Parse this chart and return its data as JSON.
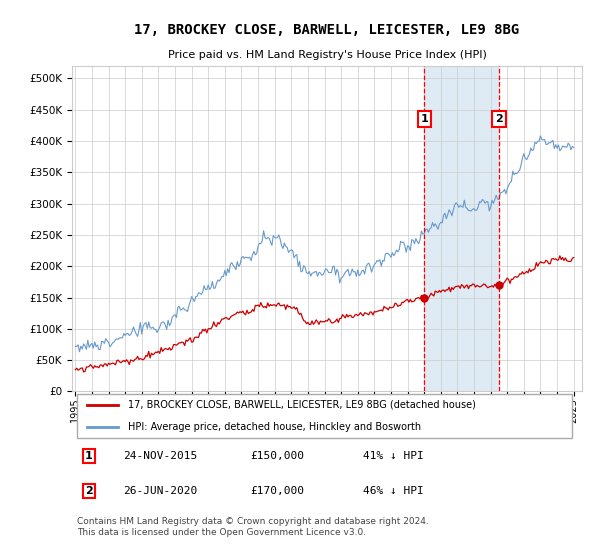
{
  "title": "17, BROCKEY CLOSE, BARWELL, LEICESTER, LE9 8BG",
  "subtitle": "Price paid vs. HM Land Registry's House Price Index (HPI)",
  "footer": "Contains HM Land Registry data © Crown copyright and database right 2024.\nThis data is licensed under the Open Government Licence v3.0.",
  "legend_label_red": "17, BROCKEY CLOSE, BARWELL, LEICESTER, LE9 8BG (detached house)",
  "legend_label_blue": "HPI: Average price, detached house, Hinckley and Bosworth",
  "transaction1_date": "24-NOV-2015",
  "transaction1_price": "£150,000",
  "transaction1_hpi": "41% ↓ HPI",
  "transaction2_date": "26-JUN-2020",
  "transaction2_price": "£170,000",
  "transaction2_hpi": "46% ↓ HPI",
  "red_color": "#cc0000",
  "blue_color": "#6699cc",
  "highlight_color": "#deeaf4",
  "grid_color": "#cccccc",
  "ylim": [
    0,
    520000
  ],
  "yticks": [
    0,
    50000,
    100000,
    150000,
    200000,
    250000,
    300000,
    350000,
    400000,
    450000,
    500000
  ],
  "ytick_labels": [
    "£0",
    "£50K",
    "£100K",
    "£150K",
    "£200K",
    "£250K",
    "£300K",
    "£350K",
    "£400K",
    "£450K",
    "£500K"
  ],
  "transaction1_x": 2016.0,
  "transaction2_x": 2020.5,
  "xlim_left": 1994.8,
  "xlim_right": 2025.5
}
